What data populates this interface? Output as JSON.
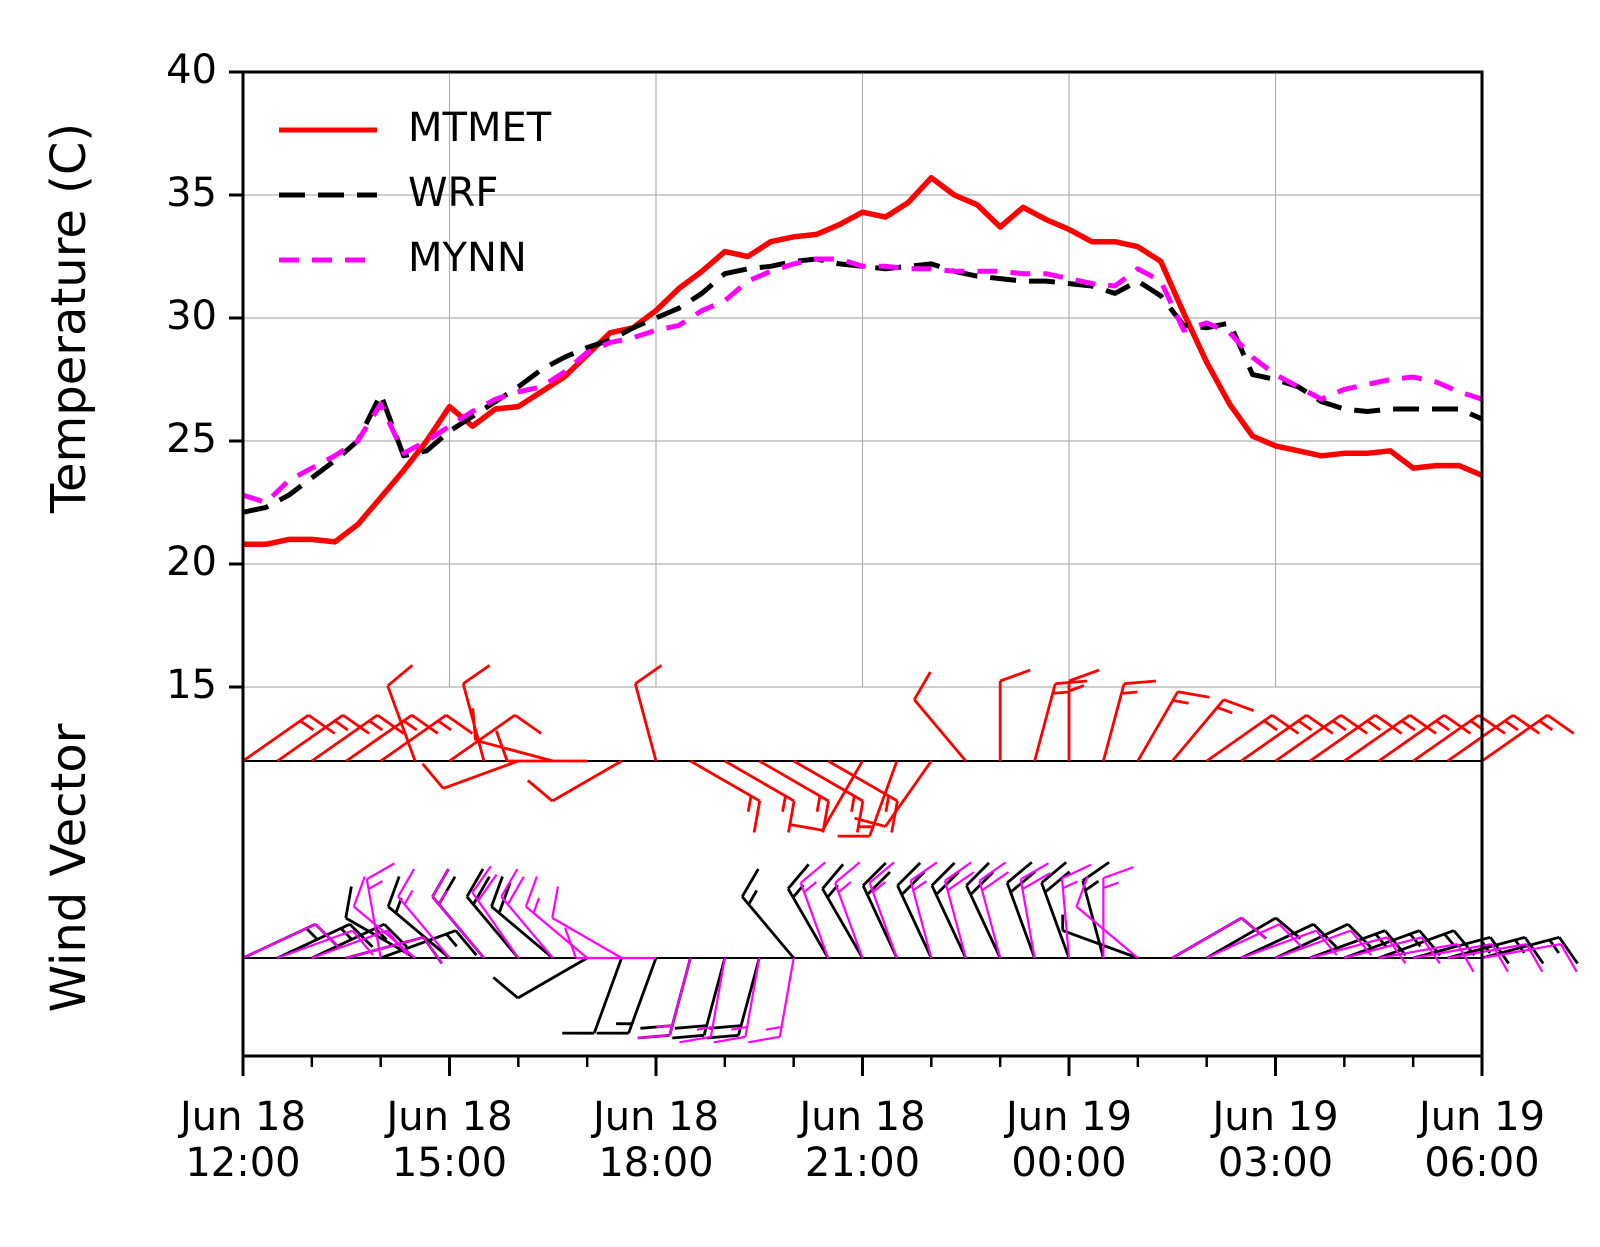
{
  "chart_data": {
    "type": "line",
    "ylabel": "Temperature (C)",
    "wind_label": "Wind Vector",
    "ylim": [
      0,
      40
    ],
    "yticks": [
      15,
      20,
      25,
      30,
      35,
      40
    ],
    "xlim": [
      "Jun 18 12:00",
      "Jun 19 06:00"
    ],
    "xticks": [
      "Jun 18\n12:00",
      "Jun 18\n15:00",
      "Jun 18\n18:00",
      "Jun 18\n21:00",
      "Jun 19\n00:00",
      "Jun 19\n03:00",
      "Jun 19\n06:00"
    ],
    "xminorticks": [
      "Jun 18 13:00",
      "Jun 18 14:00",
      "Jun 18 16:00",
      "Jun 18 17:00",
      "Jun 18 19:00",
      "Jun 18 20:00",
      "Jun 18 22:00",
      "Jun 18 23:00",
      "Jun 19 01:00",
      "Jun 19 02:00",
      "Jun 19 04:00",
      "Jun 19 05:00"
    ],
    "grid": true,
    "legend": "upper left",
    "x": [
      "Jun 18 12:00",
      "Jun 18 12:20",
      "Jun 18 12:40",
      "Jun 18 13:00",
      "Jun 18 13:20",
      "Jun 18 13:40",
      "Jun 18 14:00",
      "Jun 18 14:20",
      "Jun 18 14:40",
      "Jun 18 15:00",
      "Jun 18 15:20",
      "Jun 18 15:40",
      "Jun 18 16:00",
      "Jun 18 16:20",
      "Jun 18 16:40",
      "Jun 18 17:00",
      "Jun 18 17:20",
      "Jun 18 17:40",
      "Jun 18 18:00",
      "Jun 18 18:20",
      "Jun 18 18:40",
      "Jun 18 19:00",
      "Jun 18 19:20",
      "Jun 18 19:40",
      "Jun 18 20:00",
      "Jun 18 20:20",
      "Jun 18 20:40",
      "Jun 18 21:00",
      "Jun 18 21:20",
      "Jun 18 21:40",
      "Jun 18 22:00",
      "Jun 18 22:20",
      "Jun 18 22:40",
      "Jun 18 23:00",
      "Jun 18 23:20",
      "Jun 18 23:40",
      "Jun 19 00:00",
      "Jun 19 00:20",
      "Jun 19 00:40",
      "Jun 19 01:00",
      "Jun 19 01:20",
      "Jun 19 01:40",
      "Jun 19 02:00",
      "Jun 19 02:20",
      "Jun 19 02:40",
      "Jun 19 03:00",
      "Jun 19 03:20",
      "Jun 19 03:40",
      "Jun 19 04:00",
      "Jun 19 04:20",
      "Jun 19 04:40",
      "Jun 19 05:00",
      "Jun 19 05:20",
      "Jun 19 05:40",
      "Jun 19 06:00"
    ],
    "series": [
      {
        "name": "MTMET",
        "color": "#ff0000",
        "linestyle": "solid",
        "values": [
          20.8,
          20.8,
          21.0,
          21.0,
          20.9,
          21.6,
          22.7,
          23.8,
          25.0,
          26.4,
          25.6,
          26.3,
          26.4,
          27.0,
          27.6,
          28.5,
          29.4,
          29.6,
          30.3,
          31.2,
          31.9,
          32.7,
          32.5,
          33.1,
          33.3,
          33.4,
          33.8,
          34.3,
          34.1,
          34.7,
          35.7,
          35.0,
          34.6,
          33.7,
          34.5,
          34.0,
          33.6,
          33.1,
          33.1,
          32.9,
          32.3,
          30.2,
          28.2,
          26.5,
          25.2,
          24.8,
          24.6,
          24.4,
          24.5,
          24.5,
          24.6,
          23.9,
          24.0,
          24.0,
          23.6
        ]
      },
      {
        "name": "WRF",
        "color": "#000000",
        "linestyle": "dashed",
        "values": [
          22.1,
          22.3,
          22.8,
          23.5,
          24.2,
          25.0,
          26.9,
          24.4,
          24.6,
          25.4,
          26.0,
          26.6,
          27.2,
          27.9,
          28.4,
          28.8,
          29.1,
          29.6,
          30.0,
          30.4,
          31.0,
          31.8,
          32.0,
          32.1,
          32.3,
          32.4,
          32.2,
          32.1,
          32.0,
          32.1,
          32.2,
          31.9,
          31.7,
          31.6,
          31.5,
          31.5,
          31.4,
          31.3,
          31.0,
          31.5,
          30.9,
          29.7,
          29.6,
          29.8,
          27.7,
          27.5,
          27.2,
          26.6,
          26.3,
          26.2,
          26.3,
          26.3,
          26.3,
          26.3,
          25.9
        ]
      },
      {
        "name": "MYNN",
        "color": "#ff00ff",
        "linestyle": "dotted-dash",
        "values": [
          22.8,
          22.5,
          23.4,
          23.9,
          24.4,
          25.0,
          26.5,
          24.5,
          25.0,
          25.6,
          26.2,
          26.7,
          27.0,
          27.2,
          27.8,
          28.6,
          29.0,
          29.2,
          29.5,
          29.7,
          30.3,
          30.7,
          31.5,
          31.9,
          32.2,
          32.4,
          32.4,
          32.1,
          32.1,
          32.0,
          32.0,
          31.9,
          31.9,
          31.9,
          31.8,
          31.8,
          31.6,
          31.4,
          31.3,
          32.0,
          31.5,
          29.5,
          29.8,
          29.4,
          28.4,
          27.7,
          27.2,
          26.7,
          27.1,
          27.3,
          27.5,
          27.6,
          27.4,
          27.0,
          26.7
        ]
      }
    ],
    "barb_x": [
      "Jun 18 12:00",
      "Jun 18 12:30",
      "Jun 18 13:00",
      "Jun 18 13:30",
      "Jun 18 14:00",
      "Jun 18 14:30",
      "Jun 18 15:00",
      "Jun 18 15:30",
      "Jun 18 16:00",
      "Jun 18 16:30",
      "Jun 18 17:00",
      "Jun 18 17:30",
      "Jun 18 18:00",
      "Jun 18 18:30",
      "Jun 18 19:00",
      "Jun 18 19:30",
      "Jun 18 20:00",
      "Jun 18 20:30",
      "Jun 18 21:00",
      "Jun 18 21:30",
      "Jun 18 22:00",
      "Jun 18 22:30",
      "Jun 18 23:00",
      "Jun 18 23:30",
      "Jun 19 00:00",
      "Jun 19 00:30",
      "Jun 19 01:00",
      "Jun 19 01:30",
      "Jun 19 02:00",
      "Jun 19 02:30",
      "Jun 19 03:00",
      "Jun 19 03:30",
      "Jun 19 04:00",
      "Jun 19 04:30",
      "Jun 19 05:00",
      "Jun 19 05:30",
      "Jun 19 06:00"
    ],
    "barbs": [
      {
        "color": "#ff0000",
        "direction": [
          55,
          55,
          55,
          55,
          55,
          340,
          55,
          345,
          250,
          285,
          270,
          240,
          345,
          120,
          120,
          120,
          120,
          120,
          210,
          200,
          215,
          320,
          0,
          15,
          0,
          15,
          30,
          40,
          55,
          55,
          55,
          55,
          55,
          55,
          55,
          55,
          55
        ],
        "speed": [
          15,
          15,
          15,
          15,
          15,
          10,
          10,
          10,
          10,
          10,
          10,
          10,
          10,
          15,
          15,
          15,
          15,
          15,
          10,
          15,
          10,
          10,
          10,
          15,
          15,
          15,
          15,
          15,
          15,
          15,
          15,
          15,
          15,
          15,
          15,
          15,
          15
        ]
      },
      {
        "color": "#000000",
        "direction": [
          65,
          65,
          65,
          75,
          70,
          300,
          310,
          320,
          320,
          310,
          240,
          200,
          200,
          195,
          195,
          195,
          320,
          330,
          330,
          335,
          335,
          335,
          335,
          340,
          340,
          345,
          290,
          60,
          60,
          65,
          65,
          70,
          70,
          70,
          75,
          75,
          75
        ],
        "speed": [
          15,
          15,
          15,
          10,
          15,
          10,
          15,
          20,
          20,
          20,
          10,
          10,
          15,
          20,
          20,
          20,
          15,
          15,
          15,
          20,
          20,
          20,
          20,
          20,
          20,
          15,
          5,
          10,
          10,
          10,
          10,
          15,
          15,
          15,
          15,
          15,
          15
        ]
      },
      {
        "color": "#ff00ff",
        "direction": [
          65,
          70,
          70,
          75,
          350,
          310,
          320,
          320,
          325,
          320,
          310,
          300,
          270,
          195,
          190,
          190,
          190,
          340,
          340,
          340,
          345,
          345,
          345,
          350,
          355,
          0,
          310,
          60,
          65,
          70,
          70,
          75,
          75,
          80,
          80,
          80,
          80
        ],
        "speed": [
          10,
          10,
          10,
          10,
          15,
          10,
          15,
          15,
          20,
          20,
          15,
          10,
          10,
          15,
          15,
          15,
          15,
          15,
          15,
          15,
          15,
          20,
          20,
          20,
          15,
          15,
          10,
          10,
          10,
          10,
          10,
          10,
          10,
          10,
          10,
          10,
          10
        ]
      }
    ]
  }
}
